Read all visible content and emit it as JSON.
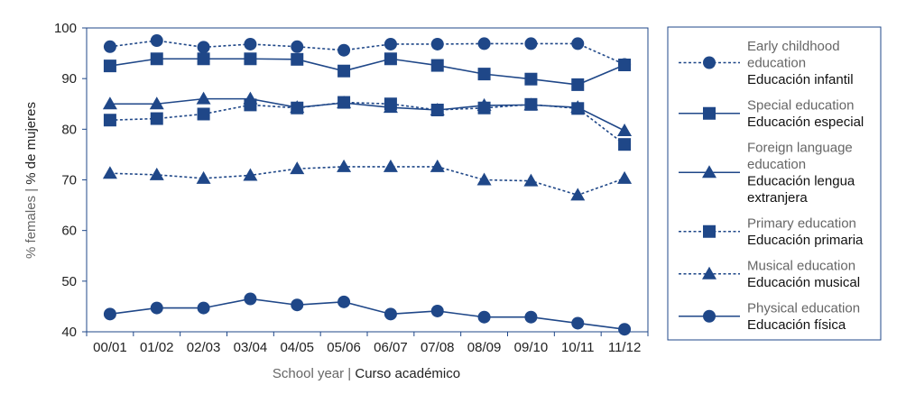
{
  "chart_data": {
    "type": "line",
    "categories": [
      "00/01",
      "01/02",
      "02/03",
      "03/04",
      "04/05",
      "05/06",
      "06/07",
      "07/08",
      "08/09",
      "09/10",
      "10/11",
      "11/12"
    ],
    "ylim": [
      40,
      100
    ],
    "yticks": [
      40,
      50,
      60,
      70,
      80,
      90,
      100
    ],
    "ylabel": {
      "en": "% females",
      "sep": " | ",
      "es": "% de mujeres"
    },
    "xlabel": {
      "en": "School year",
      "sep": " | ",
      "es": "Curso académico"
    },
    "grid": false,
    "legend_position": "right",
    "color": "#1f4788",
    "series": [
      {
        "name_en": [
          "Early childhood",
          "education"
        ],
        "name_es": [
          "Educación infantil"
        ],
        "marker": "circle",
        "dash": true,
        "values": [
          96.3,
          97.5,
          96.2,
          96.8,
          96.3,
          95.6,
          96.8,
          96.8,
          96.9,
          96.9,
          96.9,
          92.8
        ]
      },
      {
        "name_en": [
          "Special education"
        ],
        "name_es": [
          "Educación especial"
        ],
        "marker": "square",
        "dash": false,
        "values": [
          92.5,
          93.9,
          93.9,
          93.9,
          93.8,
          91.5,
          93.9,
          92.6,
          90.9,
          89.9,
          88.8,
          92.7
        ]
      },
      {
        "name_en": [
          "Foreign language",
          "education"
        ],
        "name_es": [
          "Educación lengua",
          "extranjera"
        ],
        "marker": "triangle",
        "dash": false,
        "values": [
          85.0,
          85.0,
          86.0,
          86.0,
          84.3,
          85.2,
          84.3,
          83.8,
          84.7,
          84.8,
          84.3,
          79.7
        ]
      },
      {
        "name_en": [
          "Primary education"
        ],
        "name_es": [
          "Educación primaria"
        ],
        "marker": "square",
        "dash": true,
        "values": [
          81.8,
          82.1,
          83.0,
          84.8,
          84.2,
          85.3,
          85.0,
          83.8,
          84.2,
          84.9,
          84.1,
          77.0
        ]
      },
      {
        "name_en": [
          "Musical education"
        ],
        "name_es": [
          "Educación musical"
        ],
        "marker": "triangle",
        "dash": true,
        "values": [
          71.3,
          71.0,
          70.3,
          70.9,
          72.2,
          72.6,
          72.6,
          72.6,
          70.0,
          69.8,
          67.0,
          70.3
        ]
      },
      {
        "name_en": [
          "Physical education"
        ],
        "name_es": [
          "Educación física"
        ],
        "marker": "circle",
        "dash": false,
        "values": [
          43.5,
          44.7,
          44.7,
          46.5,
          45.3,
          45.9,
          43.5,
          44.1,
          42.9,
          42.9,
          41.7,
          40.5
        ]
      }
    ]
  }
}
